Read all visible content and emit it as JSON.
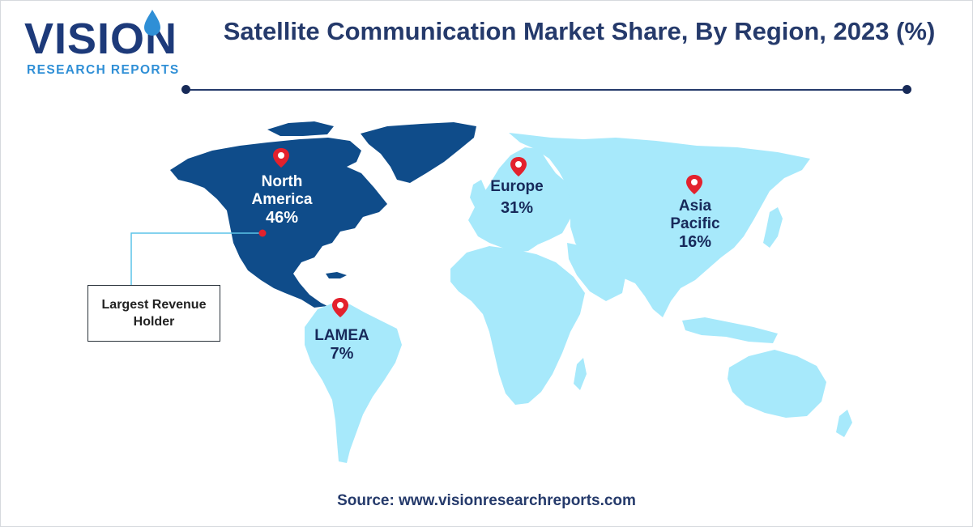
{
  "logo": {
    "word": "VISION",
    "sub": "RESEARCH REPORTS"
  },
  "title": "Satellite Communication Market Share, By Region, 2023 (%)",
  "regions": [
    {
      "name": "North America",
      "line1": "North",
      "line2": "America",
      "value": "46%"
    },
    {
      "name": "Europe",
      "line1": "Europe",
      "value": "31%"
    },
    {
      "name": "Asia Pacific",
      "line1": "Asia",
      "line2": "Pacific",
      "value": "16%"
    },
    {
      "name": "LAMEA",
      "line1": "LAMEA",
      "value": "7%"
    }
  ],
  "callout": "Largest Revenue Holder",
  "source": "Source: www.visionresearchreports.com",
  "colors": {
    "highlight": "#0f4c8a",
    "land": "#a7e9fb",
    "pin": "#e3212d",
    "title": "#253a6b"
  },
  "icons": [
    "map-pin-icon"
  ]
}
